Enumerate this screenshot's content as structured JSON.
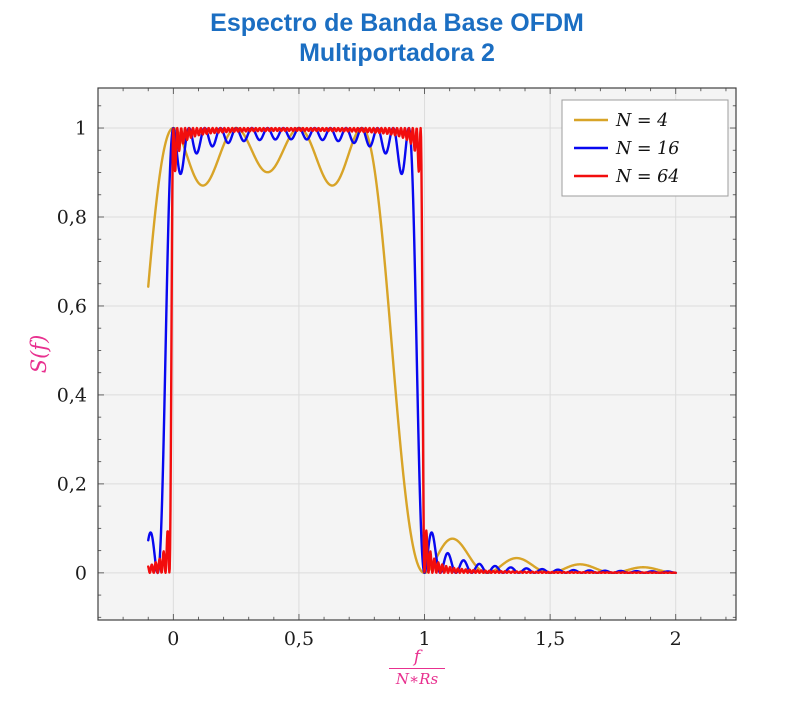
{
  "title": {
    "line1": "Espectro de Banda Base OFDM",
    "line2": "Multiportadora 2"
  },
  "colors": {
    "title": "#1b6ec2",
    "axis_label": "#e8308f",
    "gold": "#d8a428",
    "blue": "#0808f0",
    "red": "#f20d0d",
    "grid": "#dcdcdc",
    "plot_bg": "#f4f4f4",
    "frame": "#404040",
    "tick": "#555555",
    "tick_label": "#1c1c1c",
    "legend_border": "#9e9e9e",
    "legend_bg": "#ffffff"
  },
  "axes": {
    "x": {
      "numerator": "f",
      "denominator": "N∗Rs",
      "ticks": [
        {
          "v": 0,
          "label": "0"
        },
        {
          "v": 0.5,
          "label": "0,5"
        },
        {
          "v": 1,
          "label": "1"
        },
        {
          "v": 1.5,
          "label": "1,5"
        },
        {
          "v": 2,
          "label": "2"
        }
      ]
    },
    "y": {
      "label": "S(f)",
      "ticks": [
        {
          "v": 0,
          "label": "0"
        },
        {
          "v": 0.2,
          "label": "0,2"
        },
        {
          "v": 0.4,
          "label": "0,4"
        },
        {
          "v": 0.6,
          "label": "0,6"
        },
        {
          "v": 0.8,
          "label": "0,8"
        },
        {
          "v": 1,
          "label": "1"
        }
      ]
    }
  },
  "legend": [
    {
      "label": "N = 4",
      "color": "#d8a428"
    },
    {
      "label": "N = 16",
      "color": "#0808f0"
    },
    {
      "label": "N = 64",
      "color": "#f20d0d"
    }
  ],
  "chart_data": {
    "type": "line",
    "title": "Espectro de Banda Base OFDM — Multiportadora 2",
    "xlabel": "f/(N*Rs)",
    "ylabel": "S(f)",
    "xlim": [
      -0.3,
      2.24
    ],
    "ylim": [
      -0.106,
      1.09
    ],
    "x_major_ticks": [
      0,
      0.5,
      1,
      1.5,
      2
    ],
    "y_major_ticks": [
      0,
      0.2,
      0.4,
      0.6,
      0.8,
      1
    ],
    "x_minor_step": 0.1,
    "y_minor_step": 0.05,
    "grid": true,
    "legend_position": "top-right",
    "model": "S_N(x) = sum_{k=0}^{N-1} sinc^2(N*x - k), sinc(u) = sin(pi*u)/(pi*u), x = f/(N*Rs)",
    "sample_x_range": [
      -0.1,
      2.0
    ],
    "sample_step": 0.0015,
    "series": [
      {
        "name": "N = 4",
        "N": 4,
        "color": "#d8a428",
        "peak": 1.0,
        "ripple_min": 0.87,
        "passband_end": 0.75,
        "first_sidelobe": 0.075
      },
      {
        "name": "N = 16",
        "N": 16,
        "color": "#0808f0",
        "peak": 1.0,
        "ripple_min": 0.95,
        "passband_end": 0.9375,
        "first_sidelobe": 0.07
      },
      {
        "name": "N = 64",
        "N": 64,
        "color": "#f20d0d",
        "peak": 1.0,
        "ripple_min": 0.99,
        "passband_end": 0.984,
        "first_sidelobe": 0.03
      }
    ]
  }
}
